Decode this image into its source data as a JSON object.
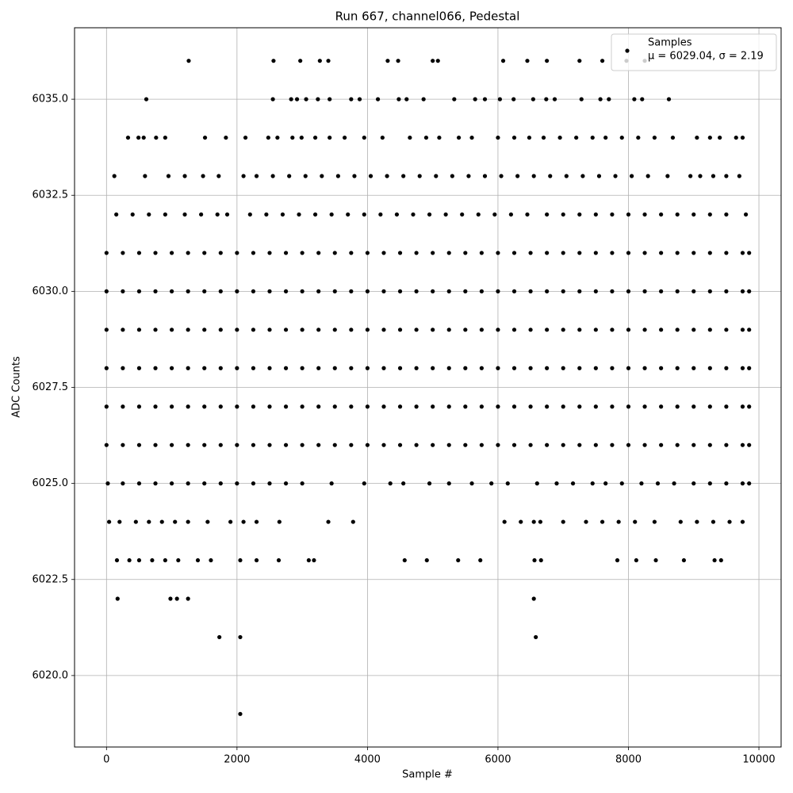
{
  "chart_data": {
    "type": "scatter",
    "title": "Run 667, channel066, Pedestal",
    "x_label": "Sample #",
    "y_label": "ADC Counts",
    "xlim": [
      -490,
      10340
    ],
    "ylim": [
      6018.14,
      6036.86
    ],
    "xticks": [
      0,
      2000,
      4000,
      6000,
      8000,
      10000
    ],
    "yticks": [
      {
        "value": 6020,
        "label": "6020.0"
      },
      {
        "value": 6022.5,
        "label": "6022.5"
      },
      {
        "value": 6025,
        "label": "6025.0"
      },
      {
        "value": 6027.5,
        "label": "6027.5"
      },
      {
        "value": 6030,
        "label": "6030.0"
      },
      {
        "value": 6032.5,
        "label": "6032.5"
      },
      {
        "value": 6035,
        "label": "6035.0"
      }
    ],
    "grid": true,
    "legend": "upper right",
    "annotation": "μ = 6029.04, σ = 2.19",
    "series": [
      {
        "name": "Samples",
        "color": "#000000",
        "rows": [
          {
            "y": 6036,
            "x": [
              1260,
              2560,
              2970,
              3270,
              3400,
              4310,
              4470,
              5000,
              5080,
              6080,
              6450,
              6750,
              7250,
              7600,
              7970,
              8250
            ]
          },
          {
            "y": 6035,
            "x": [
              610,
              2550,
              2830,
              2920,
              3060,
              3240,
              3420,
              3750,
              3880,
              4160,
              4480,
              4600,
              4860,
              5330,
              5650,
              5800,
              6030,
              6240,
              6540,
              6740,
              6870,
              7280,
              7570,
              7700,
              8090,
              8210,
              8620
            ]
          },
          {
            "y": 6034,
            "x": [
              330,
              490,
              570,
              760,
              900,
              1510,
              1830,
              2130,
              2480,
              2620,
              2850,
              2990,
              3200,
              3420,
              3650,
              3950,
              4230,
              4650,
              4900,
              5100,
              5400,
              5600,
              6000,
              6250,
              6480,
              6700,
              6950,
              7200,
              7450,
              7650,
              7900,
              8150,
              8400,
              8680,
              9050,
              9250,
              9400,
              9650,
              9750
            ]
          },
          {
            "y": 6033,
            "x": [
              120,
              590,
              950,
              1200,
              1480,
              1720,
              2100,
              2300,
              2550,
              2800,
              3050,
              3300,
              3550,
              3800,
              4050,
              4300,
              4550,
              4800,
              5050,
              5300,
              5550,
              5800,
              6050,
              6300,
              6550,
              6800,
              7050,
              7300,
              7550,
              7800,
              8050,
              8300,
              8600,
              8950,
              9100,
              9300,
              9500,
              9700
            ]
          },
          {
            "y": 6032,
            "x": [
              150,
              400,
              650,
              900,
              1200,
              1450,
              1700,
              1850,
              2200,
              2450,
              2700,
              2950,
              3200,
              3450,
              3700,
              3950,
              4200,
              4450,
              4700,
              4950,
              5200,
              5450,
              5700,
              5950,
              6200,
              6450,
              6750,
              7000,
              7250,
              7500,
              7750,
              8000,
              8250,
              8500,
              8750,
              9000,
              9250,
              9500,
              9800
            ]
          },
          {
            "y": 6031,
            "x": [
              0,
              250,
              500,
              750,
              1000,
              1250,
              1500,
              1750,
              2000,
              2250,
              2500,
              2750,
              3000,
              3250,
              3500,
              3750,
              4000,
              4250,
              4500,
              4750,
              5000,
              5250,
              5500,
              5750,
              6000,
              6250,
              6500,
              6750,
              7000,
              7250,
              7500,
              7750,
              8000,
              8250,
              8500,
              8750,
              9000,
              9250,
              9500,
              9750,
              9850
            ]
          },
          {
            "y": 6030,
            "x": [
              0,
              250,
              500,
              750,
              1000,
              1250,
              1500,
              1750,
              2000,
              2250,
              2500,
              2750,
              3000,
              3250,
              3500,
              3750,
              4000,
              4250,
              4500,
              4750,
              5000,
              5250,
              5500,
              5750,
              6000,
              6250,
              6500,
              6750,
              7000,
              7250,
              7500,
              7750,
              8000,
              8250,
              8500,
              8750,
              9000,
              9250,
              9500,
              9750,
              9850
            ]
          },
          {
            "y": 6029,
            "x": [
              0,
              250,
              500,
              750,
              1000,
              1250,
              1500,
              1750,
              2000,
              2250,
              2500,
              2750,
              3000,
              3250,
              3500,
              3750,
              4000,
              4250,
              4500,
              4750,
              5000,
              5250,
              5500,
              5750,
              6000,
              6250,
              6500,
              6750,
              7000,
              7250,
              7500,
              7750,
              8000,
              8250,
              8500,
              8750,
              9000,
              9250,
              9500,
              9750,
              9850
            ]
          },
          {
            "y": 6028,
            "x": [
              0,
              250,
              500,
              750,
              1000,
              1250,
              1500,
              1750,
              2000,
              2250,
              2500,
              2750,
              3000,
              3250,
              3500,
              3750,
              4000,
              4250,
              4500,
              4750,
              5000,
              5250,
              5500,
              5750,
              6000,
              6250,
              6500,
              6750,
              7000,
              7250,
              7500,
              7750,
              8000,
              8250,
              8500,
              8750,
              9000,
              9250,
              9500,
              9750,
              9850
            ]
          },
          {
            "y": 6027,
            "x": [
              0,
              250,
              500,
              750,
              1000,
              1250,
              1500,
              1750,
              2000,
              2250,
              2500,
              2750,
              3000,
              3250,
              3500,
              3750,
              4000,
              4250,
              4500,
              4750,
              5000,
              5250,
              5500,
              5750,
              6000,
              6250,
              6500,
              6750,
              7000,
              7250,
              7500,
              7750,
              8000,
              8250,
              8500,
              8750,
              9000,
              9250,
              9500,
              9750,
              9850
            ]
          },
          {
            "y": 6026,
            "x": [
              0,
              250,
              500,
              750,
              1000,
              1250,
              1500,
              1750,
              2000,
              2250,
              2500,
              2750,
              3000,
              3250,
              3500,
              3750,
              4000,
              4250,
              4500,
              4750,
              5000,
              5250,
              5500,
              5750,
              6000,
              6250,
              6500,
              6750,
              7000,
              7250,
              7500,
              7750,
              8000,
              8250,
              8500,
              8750,
              9000,
              9250,
              9500,
              9750,
              9850
            ]
          },
          {
            "y": 6025,
            "x": [
              20,
              250,
              500,
              750,
              1000,
              1250,
              1500,
              1750,
              2000,
              2250,
              2500,
              2750,
              3000,
              3450,
              3950,
              4350,
              4550,
              4950,
              5250,
              5600,
              5900,
              6150,
              6600,
              6900,
              7150,
              7450,
              7650,
              7900,
              8200,
              8450,
              8700,
              9000,
              9250,
              9500,
              9750,
              9850
            ]
          },
          {
            "y": 6024,
            "x": [
              40,
              200,
              450,
              650,
              850,
              1050,
              1250,
              1550,
              1900,
              2100,
              2300,
              2650,
              3400,
              3780,
              6100,
              6350,
              6550,
              6650,
              7000,
              7350,
              7600,
              7850,
              8100,
              8400,
              8800,
              9050,
              9300,
              9550,
              9750
            ]
          },
          {
            "y": 6023,
            "x": [
              160,
              350,
              500,
              700,
              900,
              1100,
              1400,
              1600,
              2050,
              2300,
              2640,
              3100,
              3180,
              4570,
              4910,
              5390,
              5730,
              6560,
              6660,
              7830,
              8120,
              8420,
              8850,
              9320,
              9420
            ]
          },
          {
            "y": 6022,
            "x": [
              170,
              980,
              1080,
              1250,
              6550
            ]
          },
          {
            "y": 6021,
            "x": [
              1730,
              2050,
              6580
            ]
          },
          {
            "y": 6019,
            "x": [
              2050
            ]
          }
        ]
      }
    ]
  }
}
